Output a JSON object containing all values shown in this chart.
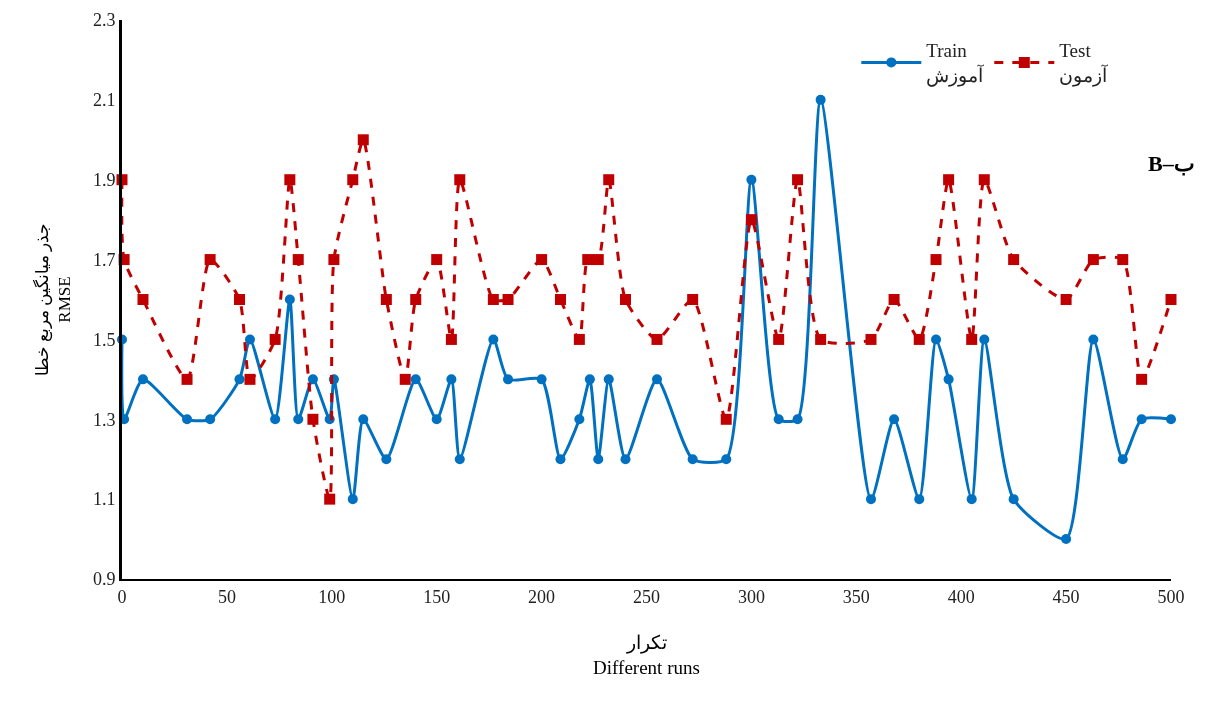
{
  "chart_data": {
    "type": "line",
    "xlabel": "تکرار\nDifferent runs",
    "ylabel": "جذر میانگین مربع خطا\nRMSE",
    "annotations": [
      "B–ب"
    ],
    "xlim": [
      0,
      500
    ],
    "xticks": [
      0,
      50,
      100,
      150,
      200,
      250,
      300,
      350,
      400,
      450,
      500
    ],
    "ylim": [
      0.9,
      2.3
    ],
    "yticks": [
      0.9,
      1.1,
      1.3,
      1.5,
      1.7,
      1.9,
      2.1,
      2.3
    ],
    "grid": false,
    "legend": "top right",
    "series": [
      {
        "name": "Train\nآموزش",
        "color": "#0070c0",
        "marker": "circle",
        "line_style": "solid",
        "x": [
          0,
          1,
          10,
          31,
          42,
          56,
          61,
          73,
          80,
          84,
          91,
          99,
          101,
          110,
          115,
          126,
          140,
          150,
          157,
          161,
          177,
          184,
          200,
          209,
          218,
          223,
          227,
          232,
          240,
          255,
          272,
          288,
          300,
          313,
          322,
          333,
          357,
          368,
          380,
          388,
          394,
          405,
          411,
          425,
          450,
          463,
          477,
          486,
          500
        ],
        "values": [
          1.5,
          1.3,
          1.4,
          1.3,
          1.3,
          1.4,
          1.5,
          1.3,
          1.6,
          1.3,
          1.4,
          1.3,
          1.4,
          1.1,
          1.3,
          1.2,
          1.4,
          1.3,
          1.4,
          1.2,
          1.5,
          1.4,
          1.4,
          1.2,
          1.3,
          1.4,
          1.2,
          1.4,
          1.2,
          1.4,
          1.2,
          1.2,
          1.9,
          1.3,
          1.3,
          2.1,
          1.1,
          1.3,
          1.1,
          1.5,
          1.4,
          1.1,
          1.5,
          1.1,
          1.0,
          1.5,
          1.2,
          1.3,
          1.3
        ]
      },
      {
        "name": "Test\nآزمون",
        "color": "#c00000",
        "marker": "square",
        "line_style": "dashed",
        "x": [
          0,
          1,
          10,
          31,
          42,
          56,
          61,
          73,
          80,
          84,
          91,
          99,
          101,
          110,
          115,
          126,
          135,
          140,
          150,
          157,
          161,
          177,
          184,
          200,
          209,
          218,
          222,
          227,
          232,
          240,
          255,
          272,
          288,
          300,
          313,
          322,
          333,
          357,
          368,
          380,
          388,
          394,
          405,
          411,
          425,
          450,
          463,
          477,
          486,
          500
        ],
        "values": [
          1.9,
          1.7,
          1.6,
          1.4,
          1.7,
          1.6,
          1.4,
          1.5,
          1.9,
          1.7,
          1.3,
          1.1,
          1.7,
          1.9,
          2.0,
          1.6,
          1.4,
          1.6,
          1.7,
          1.5,
          1.9,
          1.6,
          1.6,
          1.7,
          1.6,
          1.5,
          1.7,
          1.7,
          1.9,
          1.6,
          1.5,
          1.6,
          1.3,
          1.8,
          1.5,
          1.9,
          1.5,
          1.5,
          1.6,
          1.5,
          1.7,
          1.9,
          1.5,
          1.9,
          1.7,
          1.6,
          1.7,
          1.7,
          1.4,
          1.6
        ]
      }
    ]
  }
}
